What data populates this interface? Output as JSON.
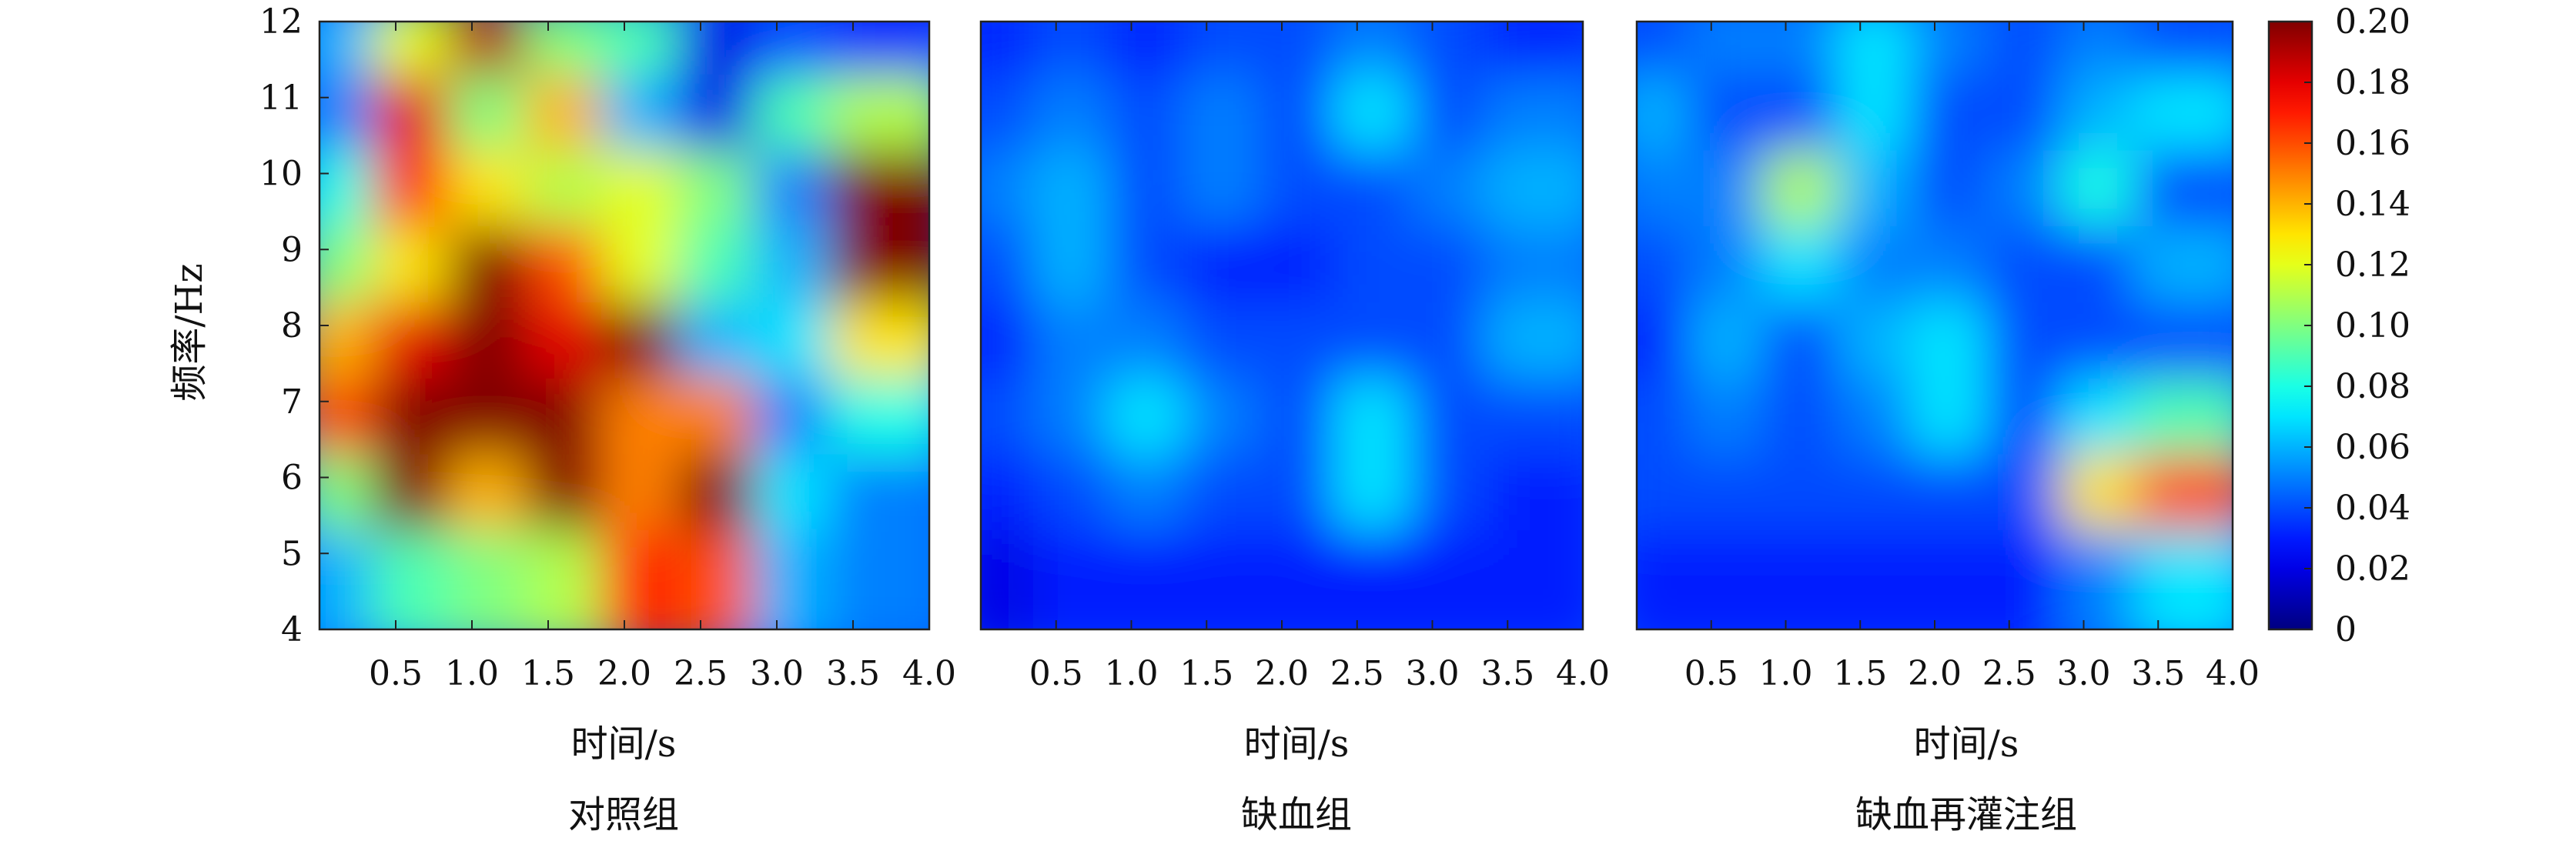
{
  "ylabel": "频率/Hz",
  "colorbar": {
    "min": 0,
    "max": 0.2,
    "tick_labels": [
      "0",
      "0.02",
      "0.04",
      "0.06",
      "0.08",
      "0.10",
      "0.12",
      "0.14",
      "0.16",
      "0.18",
      "0.20"
    ],
    "colormap": "jet"
  },
  "chart_data": [
    {
      "type": "heatmap",
      "title": "对照组",
      "xlabel": "时间/s",
      "ylabel": "频率/Hz",
      "xlim": [
        0,
        4.0
      ],
      "ylim": [
        4,
        12
      ],
      "x_tick_labels": [
        "0.5",
        "1.0",
        "1.5",
        "2.0",
        "2.5",
        "3.0",
        "3.5",
        "4.0"
      ],
      "y_tick_labels": [
        "4",
        "5",
        "6",
        "7",
        "8",
        "9",
        "10",
        "11",
        "12"
      ],
      "x": [
        0.25,
        0.75,
        1.25,
        1.75,
        2.25,
        2.75,
        3.25,
        3.75
      ],
      "y": [
        11.5,
        10.5,
        9.5,
        8.5,
        7.5,
        6.5,
        5.5,
        4.5
      ],
      "z": [
        [
          0.06,
          0.12,
          0.19,
          0.1,
          0.09,
          0.02,
          0.04,
          0.03
        ],
        [
          0.05,
          0.18,
          0.1,
          0.14,
          0.06,
          0.02,
          0.09,
          0.11
        ],
        [
          0.08,
          0.17,
          0.13,
          0.11,
          0.12,
          0.1,
          0.05,
          0.2
        ],
        [
          0.1,
          0.13,
          0.2,
          0.16,
          0.12,
          0.09,
          0.06,
          0.2
        ],
        [
          0.14,
          0.18,
          0.2,
          0.18,
          0.2,
          0.06,
          0.07,
          0.13
        ],
        [
          0.16,
          0.2,
          0.2,
          0.2,
          0.15,
          0.15,
          0.05,
          0.08
        ],
        [
          0.1,
          0.2,
          0.14,
          0.2,
          0.15,
          0.2,
          0.07,
          0.05
        ],
        [
          0.06,
          0.09,
          0.1,
          0.11,
          0.17,
          0.16,
          0.06,
          0.05
        ]
      ]
    },
    {
      "type": "heatmap",
      "title": "缺血组",
      "xlabel": "时间/s",
      "xlim": [
        0,
        4.0
      ],
      "ylim": [
        4,
        12
      ],
      "x_tick_labels": [
        "0.5",
        "1.0",
        "1.5",
        "2.0",
        "2.5",
        "3.0",
        "3.5",
        "4.0"
      ],
      "x": [
        0.25,
        0.75,
        1.25,
        1.75,
        2.25,
        2.75,
        3.25,
        3.75
      ],
      "y": [
        11.5,
        10.5,
        9.5,
        8.5,
        7.5,
        6.5,
        5.5,
        4.5
      ],
      "z": [
        [
          0.03,
          0.04,
          0.03,
          0.04,
          0.04,
          0.05,
          0.04,
          0.03
        ],
        [
          0.04,
          0.05,
          0.04,
          0.05,
          0.04,
          0.07,
          0.04,
          0.05
        ],
        [
          0.05,
          0.06,
          0.04,
          0.05,
          0.04,
          0.04,
          0.05,
          0.06
        ],
        [
          0.04,
          0.06,
          0.04,
          0.03,
          0.03,
          0.04,
          0.04,
          0.05
        ],
        [
          0.03,
          0.05,
          0.05,
          0.04,
          0.04,
          0.04,
          0.04,
          0.06
        ],
        [
          0.04,
          0.05,
          0.07,
          0.05,
          0.04,
          0.07,
          0.04,
          0.04
        ],
        [
          0.03,
          0.04,
          0.05,
          0.04,
          0.04,
          0.07,
          0.04,
          0.03
        ],
        [
          0.02,
          0.03,
          0.03,
          0.03,
          0.03,
          0.03,
          0.03,
          0.03
        ]
      ]
    },
    {
      "type": "heatmap",
      "title": "缺血再灌注组",
      "xlabel": "时间/s",
      "xlim": [
        0,
        4.0
      ],
      "ylim": [
        4,
        12
      ],
      "x_tick_labels": [
        "0.5",
        "1.0",
        "1.5",
        "2.0",
        "2.5",
        "3.0",
        "3.5",
        "4.0"
      ],
      "x": [
        0.25,
        0.75,
        1.25,
        1.75,
        2.25,
        2.75,
        3.25,
        3.75
      ],
      "y": [
        11.5,
        10.5,
        9.5,
        8.5,
        7.5,
        6.5,
        5.5,
        4.5
      ],
      "z": [
        [
          0.04,
          0.05,
          0.05,
          0.07,
          0.05,
          0.04,
          0.05,
          0.04
        ],
        [
          0.06,
          0.04,
          0.04,
          0.07,
          0.04,
          0.04,
          0.06,
          0.07
        ],
        [
          0.05,
          0.05,
          0.11,
          0.06,
          0.04,
          0.05,
          0.08,
          0.04
        ],
        [
          0.04,
          0.05,
          0.07,
          0.05,
          0.05,
          0.04,
          0.04,
          0.06
        ],
        [
          0.03,
          0.06,
          0.04,
          0.06,
          0.07,
          0.04,
          0.04,
          0.04
        ],
        [
          0.04,
          0.05,
          0.04,
          0.05,
          0.07,
          0.04,
          0.07,
          0.09
        ],
        [
          0.04,
          0.04,
          0.04,
          0.04,
          0.04,
          0.04,
          0.13,
          0.16
        ],
        [
          0.03,
          0.03,
          0.03,
          0.03,
          0.03,
          0.03,
          0.05,
          0.07
        ]
      ]
    }
  ]
}
